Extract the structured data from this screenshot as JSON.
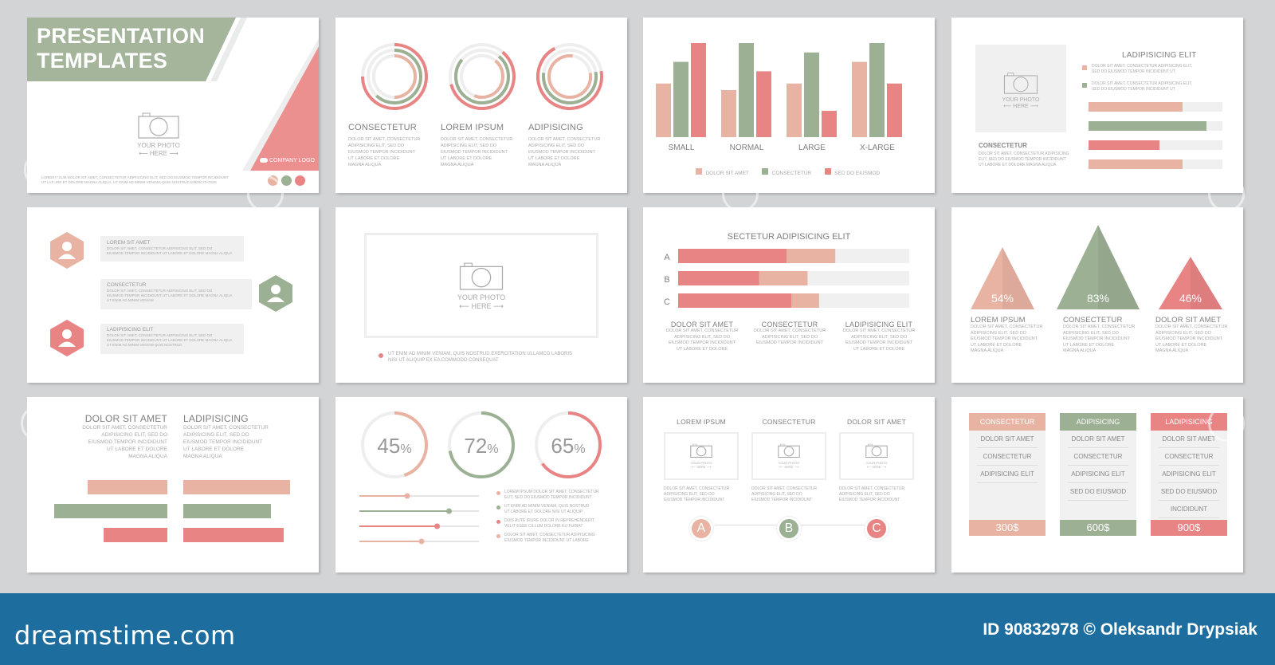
{
  "photo": {
    "line1": "YOUR PHOTO",
    "line2": "⟵ HERE ⟶"
  },
  "s1": {
    "title1": "PRESENTATION",
    "title2": "TEMPLATES",
    "logo": "COMPANY LOGO",
    "body": "LOREM IPSUM DOLOR SIT AMET, CONSECTETUR ADIPISICING ELIT, SED DO EIUSMOD TEMPOR INCIDIDUNT\nUT LABORE ET DOLORE MAGNA ALIQUA. UT ENIM AD MINIM VENIAM, QUIS NOSTRUD EXERCITATION",
    "icons": [
      "mail-icon",
      "location-pin-icon",
      "person-icon"
    ]
  },
  "s2": {
    "rings": [
      {
        "label": "CONSECTETUR",
        "fractions": [
          0.75,
          0.62,
          0.5
        ]
      },
      {
        "label": "LOREM IPSUM",
        "fractions": [
          0.6,
          0.75,
          0.45
        ]
      },
      {
        "label": "ADIPISICING",
        "fractions": [
          0.7,
          0.55,
          0.8
        ]
      }
    ],
    "body": "DOLOR SIT AMET, CONSECTETUR\nADIPISICING ELIT, SED DO\nEIUSMOD TEMPOR INCIDIDUNT\nUT LABORE ET DOLORE\nMAGNA ALIQUA"
  },
  "chart_data": [
    {
      "type": "bar",
      "categories": [
        "SMALL",
        "NORMAL",
        "LARGE",
        "X-LARGE"
      ],
      "series": [
        {
          "name": "DOLOR SIT AMET",
          "values": [
            57,
            50,
            57,
            80
          ]
        },
        {
          "name": "CONSECTETUR",
          "values": [
            80,
            100,
            90,
            100
          ]
        },
        {
          "name": "SED DO EIUSMOD",
          "values": [
            100,
            70,
            28,
            57
          ]
        }
      ],
      "ylim": [
        0,
        100
      ]
    },
    {
      "type": "bar",
      "title": "SECTETUR ADIPISICING ELIT",
      "categories": [
        "A",
        "B",
        "C"
      ],
      "series": [
        {
          "name": "",
          "values": [
            47,
            35,
            49
          ]
        },
        {
          "name": "",
          "values": [
            21,
            21,
            12
          ]
        }
      ],
      "ylim": [
        0,
        100
      ]
    }
  ],
  "s3": {
    "legend_colors": [
      "#e8b3a3",
      "#9cb094",
      "#e98484"
    ]
  },
  "s4": {
    "title": "LADIPISICING ELIT",
    "bullets": [
      "DOLOR SIT AMET, CONSECTETUR ADIPISICING ELIT,\nSED DO EIUSMOD TEMPOR INCIDIDUNT UT",
      "DOLOR SIT AMET, CONSECTETUR ADIPISICING ELIT,\nSED DO EIUSMOD TEMPOR INCIDIDUNT UT"
    ],
    "caption": "CONSECTETUR",
    "caption_body": "DOLOR SIT AMET, CONSECTETUR ADIPISICING\nELIT, SED DO EIUSMOD TEMPOR INCIDIDUNT\nUT LABORE ET DOLORE MAGNA ALIQUA",
    "bars": [
      0.7,
      0.88,
      0.53,
      0.7
    ]
  },
  "s5": {
    "items": [
      {
        "title": "LOREM SIT AMET",
        "body": "DOLOR SIT AMET, CONSECTETUR ADIPISICING ELIT, SED DO\nEIUSMOD TEMPOR INCIDIDUNT UT LABORE ET DOLORE MAGNA ALIQUA"
      },
      {
        "title": "CONSECTETUR",
        "body": "DOLOR SIT AMET, CONSECTETUR ADIPISICING ELIT, SED DO\nEIUSMOD TEMPOR INCIDIDUNT UT LABORE ET DOLORE MAGNA ALIQUA\nUT ENIM AD MINIM VENIAM"
      },
      {
        "title": "LADIPISICING ELIT",
        "body": "DOLOR SIT AMET, CONSECTETUR ADIPISICING ELIT, SED DO\nEIUSMOD TEMPOR INCIDIDUNT UT LABORE ET DOLORE MAGNA ALIQUA\nUT ENIM AD MINIM VENIAM QUIS NOSTRUD"
      }
    ]
  },
  "s6": {
    "caption": "UT ENIM AD MINIM VENIAM, QUIS NOSTRUD EXERCITATION ULLAMCO LABORIS\nNISI UT ALIQUIP EX EA COMMODO CONSEQUAT"
  },
  "s7": {
    "cols": [
      {
        "title": "DOLOR SIT AMET",
        "body": "DOLOR SIT AMET, CONSECTETUR\nADIPISICING ELIT, SED DO\nEIUSMOD TEMPOR INCIDIDUNT\nUT LABORE ET DOLORE"
      },
      {
        "title": "CONSECTETUR",
        "body": "DOLOR SIT AMET, CONSECTETUR\nADIPISICING ELIT, SED DO\nEIUSMOD TEMPOR INCIDIDUNT"
      },
      {
        "title": "LADIPISICING ELIT",
        "body": "DOLOR SIT AMET, CONSECTETUR\nADIPISICING ELIT, SED DO\nEIUSMOD TEMPOR INCIDIDUNT\nUT LABORE ET DOLORE"
      }
    ]
  },
  "s8": {
    "triangles": [
      {
        "pct": "54%",
        "label": "LOREM IPSUM"
      },
      {
        "pct": "83%",
        "label": "CONSECTETUR"
      },
      {
        "pct": "46%",
        "label": "DOLOR SIT AMET"
      }
    ],
    "body": "DOLOR SIT AMET, CONSECTETUR\nADIPISICING ELIT, SED DO\nEIUSMOD TEMPOR INCIDIDUNT\nUT LABORE ET DOLORE\nMAGNA ALIQUA"
  },
  "s9": {
    "titles": [
      "DOLOR SIT AMET",
      "LADIPISICING"
    ],
    "body": "DOLOR SIT AMET, CONSECTETUR\nADIPISICING ELIT, SED DO\nEIUSMOD TEMPOR INCIDIDUNT\nUT LABORE ET DOLORE\nMAGNA ALIQUA"
  },
  "s10": {
    "donuts": [
      {
        "num": "45",
        "unit": "%",
        "value": 0.45
      },
      {
        "num": "72",
        "unit": "%",
        "value": 0.72
      },
      {
        "num": "65",
        "unit": "%",
        "value": 0.65
      }
    ],
    "sliders": [
      0.4,
      0.75,
      0.65,
      0.52
    ],
    "bullets": [
      "LOREM IPSUM DOLOR SIT AMET, CONSECTETUR\nELIT, SED DO EIUSMOD TEMPOR INCIDIDUNT",
      "UT ENIM AD MINIM VENIAM, QUIS NOSTRUD\nUT LABORE ET DOLORE NISI UT ALIQUIP",
      "DUIS AUTE IRURE DOLOR IN REPREHENDERIT\nVELIT ESSE CILLUM DOLORE EU FUGIAT",
      "DOLOR SIT AMET, CONSECTETUR ADIPISICING\nEIUSMOD TEMPOR INCIDIDUNT UT LABORE"
    ]
  },
  "s11": {
    "cols": [
      {
        "title": "LOREM IPSUM",
        "letter": "A"
      },
      {
        "title": "CONSECTETUR",
        "letter": "B"
      },
      {
        "title": "DOLOR SIT AMET",
        "letter": "C"
      }
    ],
    "body": "DOLOR SIT AMET, CONSECTETUR\nADIPISICING ELIT, SED DO\nEIUSMOD TEMPOR INCIDIDUNT"
  },
  "s12": {
    "plans": [
      {
        "name": "CONSECTETUR",
        "items": [
          "DOLOR SIT AMET",
          "CONSECTETUR",
          "ADIPISICING ELIT"
        ],
        "price": "300$"
      },
      {
        "name": "ADIPISICING",
        "items": [
          "DOLOR SIT AMET",
          "CONSECTETUR",
          "ADIPISICING ELIT",
          "SED DO EIUSMOD"
        ],
        "price": "600$"
      },
      {
        "name": "LADIPISICING",
        "items": [
          "DOLOR SIT AMET",
          "CONSECTETUR",
          "ADIPISICING ELIT",
          "SED DO EIUSMOD",
          "INCIDIDUNT"
        ],
        "price": "900$"
      }
    ]
  },
  "footer": {
    "brand": "dreamstime.com",
    "credit": "ID 90832978 © Oleksandr Drypsiak"
  }
}
